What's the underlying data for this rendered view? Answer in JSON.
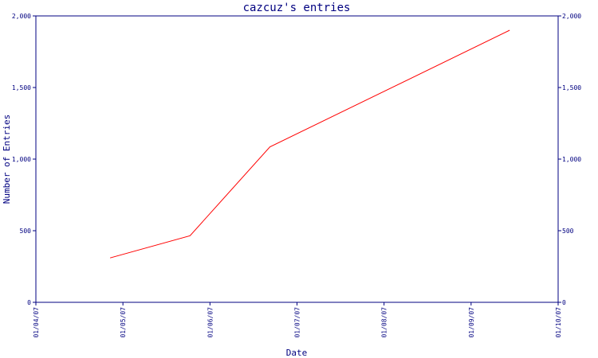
{
  "chart_data": {
    "type": "line",
    "title": "cazcuz's entries",
    "xlabel": "Date",
    "ylabel": "Number of Entries",
    "x_ticks": [
      "01/04/07",
      "01/05/07",
      "01/06/07",
      "01/07/07",
      "01/08/07",
      "01/09/07",
      "01/10/07"
    ],
    "y_ticks": [
      0,
      500,
      1000,
      1500,
      2000
    ],
    "y_tick_labels": [
      "0",
      "500",
      "1,000",
      "1,500",
      "2,000"
    ],
    "xlim": [
      "2007-04-01",
      "2007-10-01"
    ],
    "ylim": [
      0,
      2000
    ],
    "series": [
      {
        "color": "#ff0000",
        "points": [
          {
            "x": "2007-04-27",
            "y": 310
          },
          {
            "x": "2007-05-25",
            "y": 465
          },
          {
            "x": "2007-06-22",
            "y": 1085
          },
          {
            "x": "2007-09-14",
            "y": 1900
          }
        ]
      }
    ],
    "axis_color": "#000080",
    "grid": false,
    "right_axis": true
  }
}
